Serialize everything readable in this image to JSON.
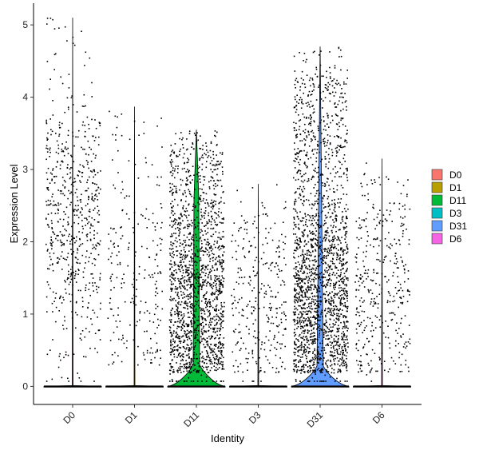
{
  "chart_data": {
    "type": "violin",
    "xlabel": "Identity",
    "ylabel": "Expression Level",
    "ylim": [
      -0.25,
      5.3
    ],
    "yticks": [
      0,
      1,
      2,
      3,
      4,
      5
    ],
    "grid": false,
    "legend_position": "right",
    "categories": [
      "D0",
      "D1",
      "D11",
      "D3",
      "D31",
      "D6"
    ],
    "colors": {
      "D0": "#F8766D",
      "D1": "#B79F00",
      "D11": "#00BA38",
      "D3": "#00BFC4",
      "D31": "#619CFF",
      "D6": "#F564E3"
    },
    "groups": [
      {
        "name": "D0",
        "max": 5.1,
        "violin_width": 0.45,
        "base_width": 0.45,
        "points": [
          {
            "lo": 0.3,
            "hi": 4.6,
            "n": 620,
            "center": 2.3
          }
        ]
      },
      {
        "name": "D1",
        "max": 3.87,
        "violin_width": 0.45,
        "base_width": 0.45,
        "points": [
          {
            "lo": 0.3,
            "hi": 3.7,
            "n": 230,
            "center": 1.7
          }
        ]
      },
      {
        "name": "D11",
        "max": 3.55,
        "violin_width": 0.45,
        "base_width": 0.45,
        "points": [
          {
            "lo": 0.2,
            "hi": 3.3,
            "n": 1700,
            "center": 1.3
          }
        ]
      },
      {
        "name": "D3",
        "max": 2.8,
        "violin_width": 0.45,
        "base_width": 0.45,
        "points": [
          {
            "lo": 0.2,
            "hi": 2.5,
            "n": 300,
            "center": 1.2
          }
        ]
      },
      {
        "name": "D31",
        "max": 4.7,
        "violin_width": 0.45,
        "base_width": 0.45,
        "points": [
          {
            "lo": 0.2,
            "hi": 4.3,
            "n": 2100,
            "center": 1.3
          }
        ]
      },
      {
        "name": "D6",
        "max": 3.15,
        "violin_width": 0.45,
        "base_width": 0.45,
        "points": [
          {
            "lo": 0.2,
            "hi": 2.9,
            "n": 380,
            "center": 1.3
          }
        ]
      }
    ]
  }
}
